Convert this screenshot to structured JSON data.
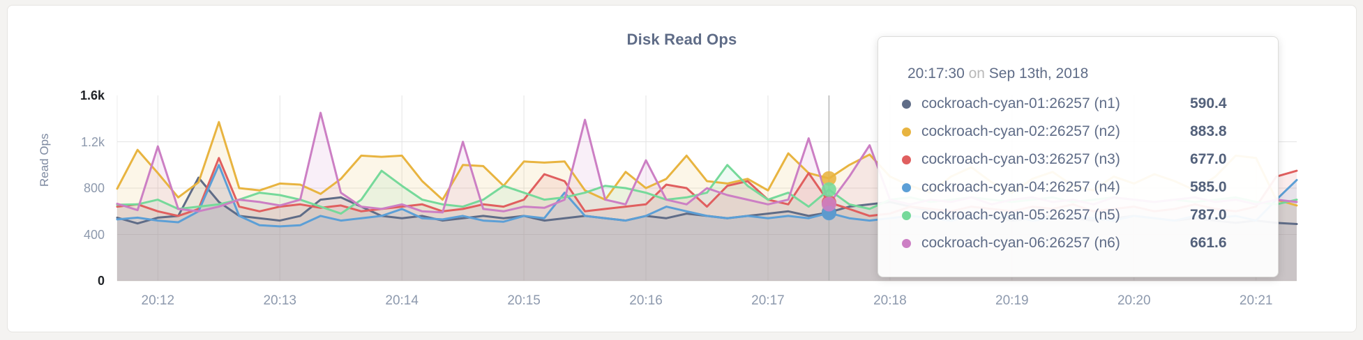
{
  "page": {
    "background": "#f4f3f1",
    "card_background": "#ffffff"
  },
  "chart_data": {
    "type": "line",
    "title": "Disk Read Ops",
    "ylabel": "Read Ops",
    "xlabel": "",
    "ylim": [
      0,
      1600
    ],
    "grid": true,
    "x_unit": "seconds from 20:11:40",
    "sample_interval_seconds": 10,
    "x_domain": [
      0,
      580
    ],
    "x_ticks": [
      {
        "t": 20,
        "label": "20:12"
      },
      {
        "t": 80,
        "label": "20:13"
      },
      {
        "t": 140,
        "label": "20:14"
      },
      {
        "t": 200,
        "label": "20:15"
      },
      {
        "t": 260,
        "label": "20:16"
      },
      {
        "t": 320,
        "label": "20:17"
      },
      {
        "t": 380,
        "label": "20:18"
      },
      {
        "t": 440,
        "label": "20:19"
      },
      {
        "t": 500,
        "label": "20:20"
      },
      {
        "t": 560,
        "label": "20:21"
      }
    ],
    "y_ticks": [
      {
        "v": 0,
        "label": "0",
        "strong": true
      },
      {
        "v": 400,
        "label": "400",
        "strong": false
      },
      {
        "v": 800,
        "label": "800",
        "strong": false
      },
      {
        "v": 1200,
        "label": "1.2k",
        "strong": false
      },
      {
        "v": 1600,
        "label": "1.6k",
        "strong": true
      }
    ],
    "gridline_values": [
      400,
      800,
      1200
    ],
    "hover": {
      "t": 350,
      "index": 35,
      "time_label": "20:17:30",
      "date_label": "Sep 13th, 2018"
    },
    "series": [
      {
        "name": "cockroach-cyan-01:26257 (n1)",
        "color": "#5f6c87",
        "values": [
          545,
          495,
          545,
          560,
          890,
          680,
          560,
          540,
          520,
          560,
          700,
          720,
          640,
          560,
          540,
          560,
          520,
          540,
          560,
          540,
          560,
          520,
          540,
          560,
          540,
          520,
          560,
          540,
          580,
          560,
          540,
          560,
          580,
          600,
          560,
          590.4,
          640,
          660,
          680,
          640,
          600,
          560,
          540,
          560,
          520,
          540,
          560,
          540,
          520,
          540,
          560,
          540,
          520,
          540,
          520,
          500,
          520,
          500,
          490
        ]
      },
      {
        "name": "cockroach-cyan-02:26257 (n2)",
        "color": "#e8b440",
        "values": [
          795,
          1130,
          930,
          720,
          850,
          1370,
          800,
          780,
          840,
          830,
          750,
          880,
          1080,
          1070,
          1080,
          860,
          700,
          1000,
          990,
          820,
          1030,
          1020,
          1030,
          780,
          700,
          940,
          800,
          880,
          1080,
          860,
          840,
          880,
          780,
          1100,
          930,
          883.8,
          1000,
          1090,
          900,
          820,
          760,
          900,
          980,
          850,
          760,
          880,
          940,
          820,
          780,
          900,
          840,
          920,
          860,
          780,
          900,
          1080,
          1060,
          700,
          650
        ]
      },
      {
        "name": "cockroach-cyan-03:26257 (n3)",
        "color": "#e05f5f",
        "values": [
          640,
          660,
          600,
          560,
          620,
          1060,
          640,
          600,
          640,
          660,
          630,
          650,
          600,
          620,
          640,
          660,
          600,
          620,
          660,
          640,
          700,
          920,
          860,
          600,
          620,
          640,
          660,
          830,
          800,
          640,
          820,
          860,
          700,
          660,
          930,
          677.0,
          620,
          560,
          580,
          640,
          620,
          600,
          640,
          620,
          600,
          640,
          620,
          660,
          600,
          620,
          640,
          600,
          620,
          660,
          620,
          600,
          640,
          900,
          950
        ]
      },
      {
        "name": "cockroach-cyan-04:26257 (n4)",
        "color": "#5c9fd6",
        "values": [
          530,
          545,
          520,
          505,
          600,
          1000,
          560,
          480,
          470,
          480,
          560,
          520,
          540,
          560,
          620,
          540,
          530,
          560,
          520,
          510,
          560,
          540,
          760,
          560,
          540,
          520,
          560,
          640,
          600,
          560,
          540,
          560,
          540,
          560,
          540,
          585.0,
          540,
          520,
          540,
          560,
          540,
          520,
          560,
          540,
          560,
          520,
          540,
          560,
          540,
          520,
          560,
          540,
          520,
          560,
          540,
          560,
          520,
          700,
          870
        ]
      },
      {
        "name": "cockroach-cyan-05:26257 (n5)",
        "color": "#76d99a",
        "values": [
          656,
          660,
          700,
          620,
          640,
          660,
          700,
          760,
          740,
          700,
          640,
          580,
          700,
          950,
          820,
          700,
          660,
          640,
          700,
          820,
          760,
          700,
          720,
          760,
          820,
          800,
          760,
          700,
          720,
          760,
          1000,
          820,
          700,
          760,
          640,
          787.0,
          660,
          620,
          700,
          720,
          680,
          700,
          720,
          700,
          680,
          700,
          720,
          680,
          700,
          720,
          700,
          680,
          700,
          680,
          700,
          720,
          680,
          660,
          700
        ]
      },
      {
        "name": "cockroach-cyan-06:26257 (n6)",
        "color": "#cc7fc4",
        "values": [
          665,
          610,
          1160,
          620,
          600,
          640,
          700,
          680,
          650,
          700,
          1450,
          760,
          640,
          620,
          660,
          600,
          590,
          1200,
          620,
          600,
          640,
          630,
          700,
          1390,
          700,
          660,
          1040,
          700,
          660,
          800,
          740,
          700,
          660,
          700,
          1230,
          661.6,
          900,
          1170,
          700,
          660,
          700,
          680,
          720,
          660,
          700,
          720,
          680,
          700,
          660,
          720,
          700,
          680,
          700,
          720,
          680,
          700,
          660,
          700,
          680
        ]
      }
    ]
  },
  "tooltip": {
    "time": "20:17:30",
    "conjunction": "on",
    "date": "Sep 13th, 2018",
    "rows": [
      {
        "name": "cockroach-cyan-01:26257 (n1)",
        "value": "590.4",
        "color": "#5f6c87"
      },
      {
        "name": "cockroach-cyan-02:26257 (n2)",
        "value": "883.8",
        "color": "#e8b440"
      },
      {
        "name": "cockroach-cyan-03:26257 (n3)",
        "value": "677.0",
        "color": "#e05f5f"
      },
      {
        "name": "cockroach-cyan-04:26257 (n4)",
        "value": "585.0",
        "color": "#5c9fd6"
      },
      {
        "name": "cockroach-cyan-05:26257 (n5)",
        "value": "787.0",
        "color": "#76d99a"
      },
      {
        "name": "cockroach-cyan-06:26257 (n6)",
        "value": "661.6",
        "color": "#cc7fc4"
      }
    ]
  }
}
